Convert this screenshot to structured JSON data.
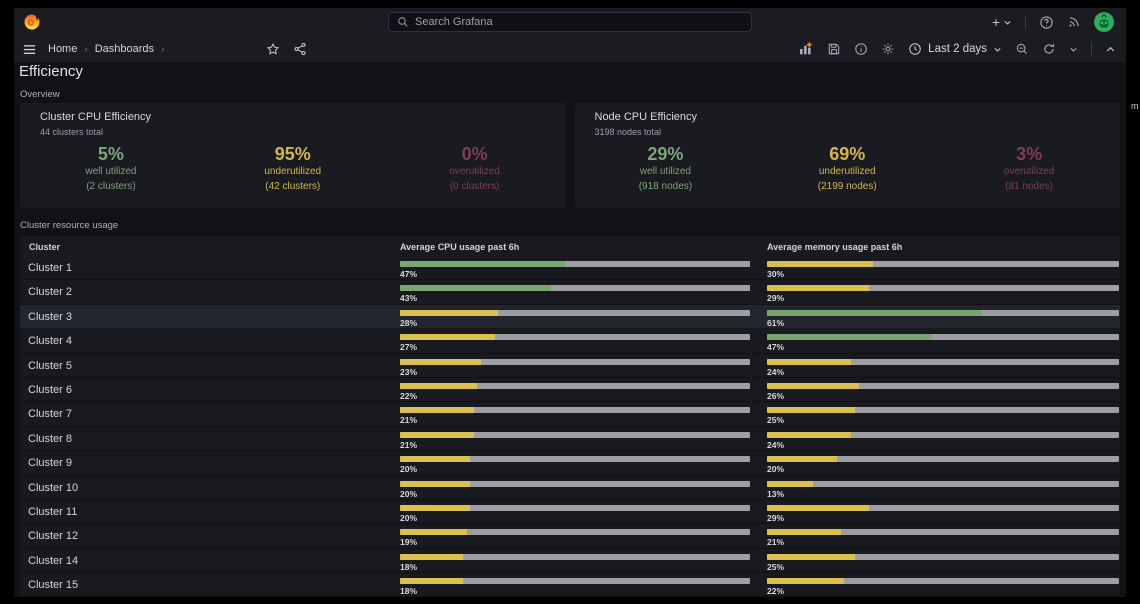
{
  "topbar": {
    "search_placeholder": "Search Grafana",
    "new_label": "+"
  },
  "breadcrumb": {
    "separator": "›",
    "items": [
      "Home",
      "Dashboards"
    ]
  },
  "toolbar": {
    "time_range": "Last 2 days"
  },
  "page": {
    "title": "Efficiency",
    "overview_row_label": "Overview",
    "resource_row_label": "Cluster resource usage",
    "edge_artifact": "m"
  },
  "panels": {
    "cluster_cpu": {
      "title": "Cluster CPU Efficiency",
      "subtitle": "44 clusters total",
      "stats": [
        {
          "value": "5%",
          "label": "well utilized",
          "sub": "(2 clusters)",
          "color": "green"
        },
        {
          "value": "95%",
          "label": "underutilized",
          "sub": "(42 clusters)",
          "color": "yellow"
        },
        {
          "value": "0%",
          "label": "overutilized",
          "sub": "(0 clusters)",
          "color": "red"
        }
      ]
    },
    "node_cpu": {
      "title": "Node CPU Efficiency",
      "subtitle": "3198 nodes total",
      "stats": [
        {
          "value": "29%",
          "label": "well utilized",
          "sub": "(918 nodes)",
          "color": "green"
        },
        {
          "value": "69%",
          "label": "underutilized",
          "sub": "(2199 nodes)",
          "color": "yellow"
        },
        {
          "value": "3%",
          "label": "overutilized",
          "sub": "(81 nodes)",
          "color": "red"
        }
      ]
    }
  },
  "table": {
    "headers": [
      "Cluster",
      "Average CPU usage past 6h",
      "Average memory usage past 6h"
    ],
    "rows": [
      {
        "name": "Cluster 1",
        "cpu": 47,
        "mem": 30
      },
      {
        "name": "Cluster 2",
        "cpu": 43,
        "mem": 29
      },
      {
        "name": "Cluster 3",
        "cpu": 28,
        "mem": 61,
        "highlighted": true
      },
      {
        "name": "Cluster 4",
        "cpu": 27,
        "mem": 47
      },
      {
        "name": "Cluster 5",
        "cpu": 23,
        "mem": 24
      },
      {
        "name": "Cluster 6",
        "cpu": 22,
        "mem": 26
      },
      {
        "name": "Cluster 7",
        "cpu": 21,
        "mem": 25
      },
      {
        "name": "Cluster 8",
        "cpu": 21,
        "mem": 24
      },
      {
        "name": "Cluster 9",
        "cpu": 20,
        "mem": 20
      },
      {
        "name": "Cluster 10",
        "cpu": 20,
        "mem": 13
      },
      {
        "name": "Cluster 11",
        "cpu": 20,
        "mem": 29
      },
      {
        "name": "Cluster 12",
        "cpu": 19,
        "mem": 21
      },
      {
        "name": "Cluster 14",
        "cpu": 18,
        "mem": 25
      },
      {
        "name": "Cluster 15",
        "cpu": 18,
        "mem": 22
      }
    ]
  },
  "palette": {
    "stat_green": "#7fa37c",
    "stat_yellow": "#d2b64e",
    "stat_red": "#a84e68",
    "bar_green": "#79a56e",
    "bar_yellow": "#dcc04f",
    "bar_rest": "#9d9fa3",
    "green_threshold": 40,
    "accent_orange": "#ff8c1a"
  }
}
